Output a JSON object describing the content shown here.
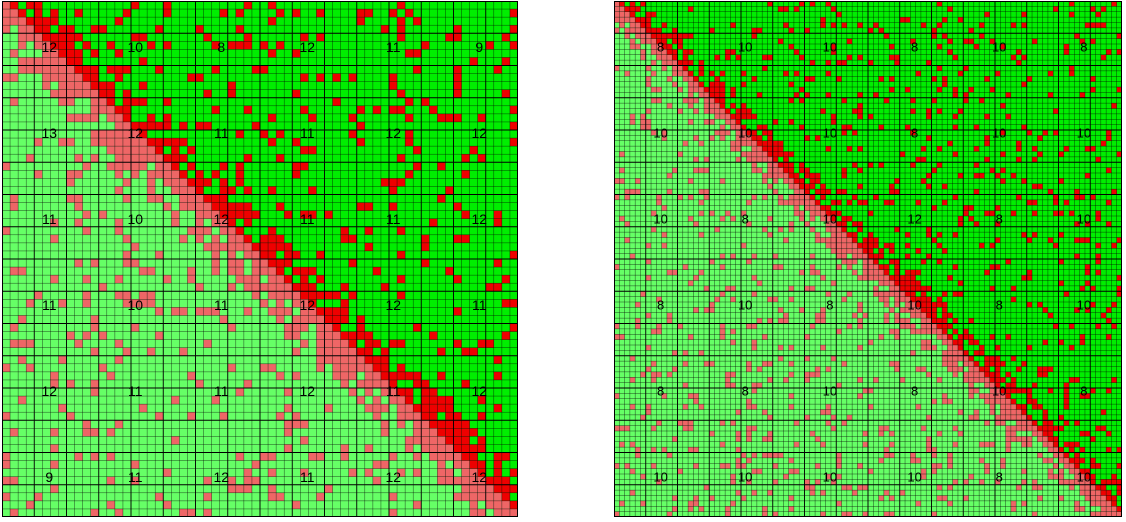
{
  "colors": {
    "admissible_block": "#00ee00",
    "dense_block": "#ee0000",
    "admissible_block_lower": "#66ff66",
    "dense_block_lower": "#ee6666",
    "grid_line": "#000000"
  },
  "matrices": [
    {
      "name": "left-matrix",
      "label_samples": [
        {
          "text": "12"
        },
        {
          "text": "10"
        },
        {
          "text": "8"
        },
        {
          "text": "12"
        },
        {
          "text": "11"
        },
        {
          "text": "9"
        },
        {
          "text": "13"
        },
        {
          "text": "12"
        },
        {
          "text": "11"
        },
        {
          "text": "11"
        },
        {
          "text": "12"
        },
        {
          "text": "12"
        },
        {
          "text": "11"
        },
        {
          "text": "10"
        },
        {
          "text": "12"
        },
        {
          "text": "11"
        },
        {
          "text": "11"
        },
        {
          "text": "12"
        },
        {
          "text": "11"
        },
        {
          "text": "10"
        },
        {
          "text": "11"
        },
        {
          "text": "12"
        },
        {
          "text": "12"
        },
        {
          "text": "11"
        },
        {
          "text": "12"
        },
        {
          "text": "11"
        },
        {
          "text": "11"
        },
        {
          "text": "12"
        },
        {
          "text": "11"
        },
        {
          "text": "12"
        },
        {
          "text": "9"
        },
        {
          "text": "11"
        },
        {
          "text": "12"
        },
        {
          "text": "11"
        },
        {
          "text": "12"
        },
        {
          "text": "12"
        }
      ]
    },
    {
      "name": "right-matrix",
      "label_samples": [
        {
          "text": "8"
        },
        {
          "text": "10"
        },
        {
          "text": "10"
        },
        {
          "text": "8"
        },
        {
          "text": "10"
        },
        {
          "text": "8"
        },
        {
          "text": "10"
        },
        {
          "text": "10"
        },
        {
          "text": "10"
        },
        {
          "text": "8"
        },
        {
          "text": "10"
        },
        {
          "text": "10"
        },
        {
          "text": "10"
        },
        {
          "text": "8"
        },
        {
          "text": "10"
        },
        {
          "text": "12"
        },
        {
          "text": "8"
        },
        {
          "text": "10"
        },
        {
          "text": "8"
        },
        {
          "text": "10"
        },
        {
          "text": "8"
        },
        {
          "text": "10"
        },
        {
          "text": "8"
        },
        {
          "text": "10"
        },
        {
          "text": "8"
        },
        {
          "text": "8"
        },
        {
          "text": "10"
        },
        {
          "text": "8"
        },
        {
          "text": "10"
        },
        {
          "text": "8"
        },
        {
          "text": "10"
        },
        {
          "text": "10"
        },
        {
          "text": "10"
        },
        {
          "text": "10"
        },
        {
          "text": "8"
        },
        {
          "text": "10"
        }
      ]
    }
  ]
}
